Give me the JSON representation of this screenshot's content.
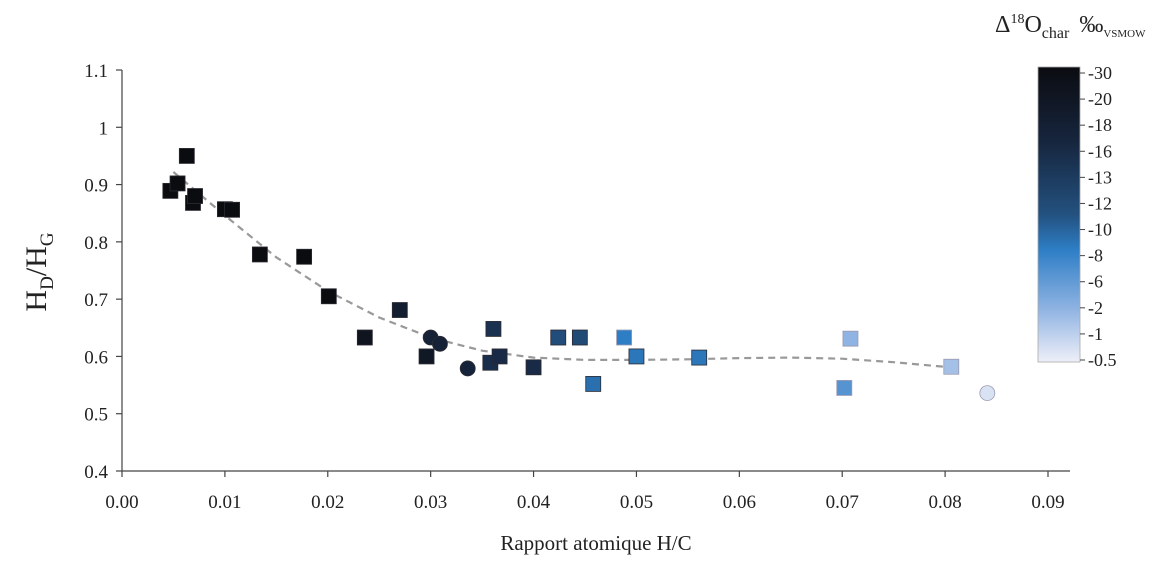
{
  "chart_data": {
    "type": "scatter",
    "xlabel": "Rapport atomique H/C",
    "ylabel": {
      "base": "H",
      "sub1": "D",
      "slash": "/H",
      "sub2": "G"
    },
    "xlim": [
      0.0,
      0.09
    ],
    "ylim": [
      0.4,
      1.1
    ],
    "xticks": [
      "0.00",
      "0.01",
      "0.02",
      "0.03",
      "0.04",
      "0.05",
      "0.06",
      "0.07",
      "0.08",
      "0.09"
    ],
    "yticks": [
      "0.4",
      "0.5",
      "0.6",
      "0.7",
      "0.8",
      "0.9",
      "1",
      "1.1"
    ],
    "grid": false,
    "colorbar": {
      "title": {
        "delta": "Δ",
        "sup": "18",
        "o": "O",
        "sub": "char",
        "permil": "‰",
        "permil_sub": "VSMOW"
      },
      "labels": [
        "-30",
        "-20",
        "-18",
        "-16",
        "-13",
        "-12",
        "-10",
        "-8",
        "-6",
        "-2",
        "-1",
        "-0.5"
      ],
      "colors": [
        "#0b0c10",
        "#16253d",
        "#23517f",
        "#2e7ec6",
        "#8fb3e2",
        "#eeeff8"
      ]
    },
    "trendline": {
      "style": "dashed",
      "color": "#999999",
      "x": [
        0.005,
        0.01,
        0.015,
        0.02,
        0.025,
        0.03,
        0.035,
        0.04,
        0.045,
        0.05,
        0.055,
        0.06,
        0.065,
        0.07,
        0.075,
        0.0805
      ],
      "y": [
        0.922,
        0.846,
        0.773,
        0.714,
        0.668,
        0.633,
        0.61,
        0.598,
        0.594,
        0.594,
        0.595,
        0.597,
        0.598,
        0.596,
        0.59,
        0.581
      ]
    },
    "points": [
      {
        "x": 0.0047,
        "y": 0.889,
        "shape": "square",
        "c": 0.0
      },
      {
        "x": 0.0054,
        "y": 0.902,
        "shape": "square",
        "c": 0.0
      },
      {
        "x": 0.0063,
        "y": 0.95,
        "shape": "square",
        "c": 0.0
      },
      {
        "x": 0.0069,
        "y": 0.868,
        "shape": "square",
        "c": 0.0
      },
      {
        "x": 0.0071,
        "y": 0.88,
        "shape": "square",
        "c": 0.0
      },
      {
        "x": 0.01,
        "y": 0.857,
        "shape": "square",
        "c": 0.0
      },
      {
        "x": 0.0107,
        "y": 0.856,
        "shape": "square",
        "c": 0.0
      },
      {
        "x": 0.0134,
        "y": 0.778,
        "shape": "square",
        "c": 0.0
      },
      {
        "x": 0.0177,
        "y": 0.774,
        "shape": "square",
        "c": 0.0
      },
      {
        "x": 0.0201,
        "y": 0.705,
        "shape": "square",
        "c": 0.0
      },
      {
        "x": 0.0236,
        "y": 0.633,
        "shape": "square",
        "c": 0.08
      },
      {
        "x": 0.027,
        "y": 0.681,
        "shape": "square",
        "c": 0.18
      },
      {
        "x": 0.0296,
        "y": 0.6,
        "shape": "square",
        "c": 0.12
      },
      {
        "x": 0.03,
        "y": 0.633,
        "shape": "circle",
        "c": 0.22
      },
      {
        "x": 0.0309,
        "y": 0.622,
        "shape": "circle",
        "c": 0.22
      },
      {
        "x": 0.0336,
        "y": 0.579,
        "shape": "circle",
        "c": 0.24
      },
      {
        "x": 0.0358,
        "y": 0.589,
        "shape": "square",
        "c": 0.3
      },
      {
        "x": 0.0361,
        "y": 0.648,
        "shape": "square",
        "c": 0.32
      },
      {
        "x": 0.0367,
        "y": 0.6,
        "shape": "square",
        "c": 0.28
      },
      {
        "x": 0.04,
        "y": 0.581,
        "shape": "square",
        "c": 0.28
      },
      {
        "x": 0.0424,
        "y": 0.633,
        "shape": "square",
        "c": 0.48
      },
      {
        "x": 0.0445,
        "y": 0.633,
        "shape": "square",
        "c": 0.46
      },
      {
        "x": 0.0458,
        "y": 0.552,
        "shape": "square",
        "c": 0.58
      },
      {
        "x": 0.0488,
        "y": 0.633,
        "shape": "square",
        "c": 0.62
      },
      {
        "x": 0.05,
        "y": 0.6,
        "shape": "square",
        "c": 0.6
      },
      {
        "x": 0.0561,
        "y": 0.598,
        "shape": "square",
        "c": 0.6
      },
      {
        "x": 0.0702,
        "y": 0.545,
        "shape": "square",
        "c": 0.7
      },
      {
        "x": 0.0708,
        "y": 0.631,
        "shape": "square",
        "c": 0.82
      },
      {
        "x": 0.0806,
        "y": 0.582,
        "shape": "square",
        "c": 0.86
      },
      {
        "x": 0.0841,
        "y": 0.536,
        "shape": "circle",
        "c": 0.96
      }
    ]
  }
}
